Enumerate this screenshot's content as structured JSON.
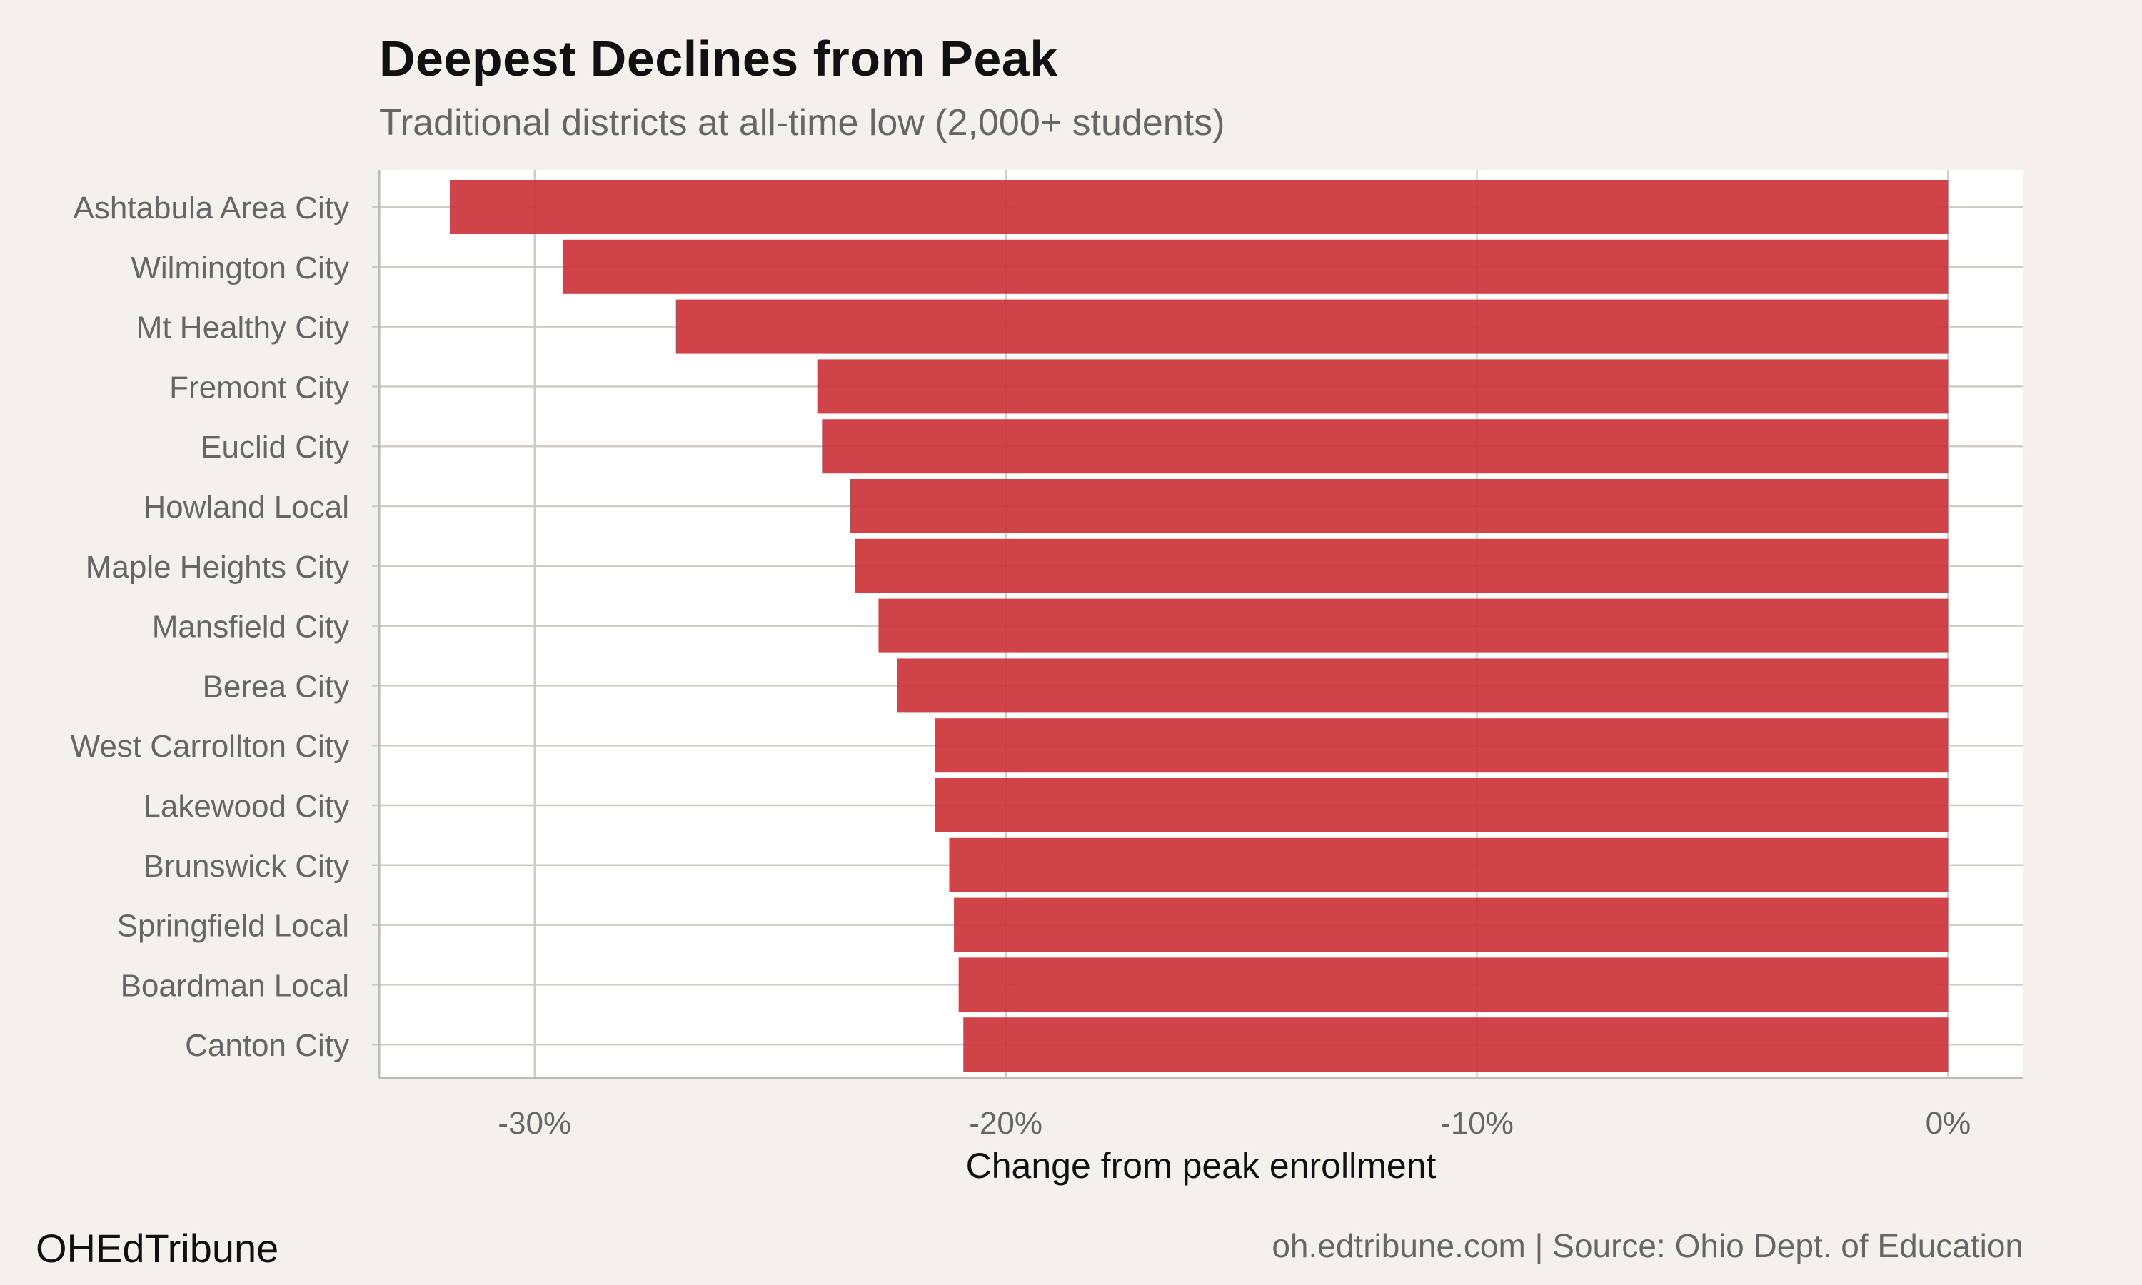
{
  "chart_data": {
    "type": "bar",
    "orientation": "horizontal",
    "title": "Deepest Declines from Peak",
    "subtitle": "Traditional districts at all-time low (2,000+ students)",
    "xlabel": "Change from peak enrollment",
    "ylabel": "",
    "categories": [
      "Ashtabula Area City",
      "Wilmington City",
      "Mt Healthy City",
      "Fremont City",
      "Euclid City",
      "Howland Local",
      "Maple Heights City",
      "Mansfield City",
      "Berea City",
      "West Carrollton City",
      "Lakewood City",
      "Brunswick City",
      "Springfield Local",
      "Boardman Local",
      "Canton City"
    ],
    "values": [
      -31.8,
      -29.4,
      -27.0,
      -24.0,
      -23.9,
      -23.3,
      -23.2,
      -22.7,
      -22.3,
      -21.5,
      -21.5,
      -21.2,
      -21.1,
      -21.0,
      -20.9
    ],
    "xlim": [
      -33.3,
      1.6
    ],
    "xticks": [
      -30,
      -20,
      -10,
      0
    ],
    "xtick_labels": [
      "-30%",
      "-20%",
      "-10%",
      "0%"
    ],
    "grid": true,
    "bar_color": "#cc3338"
  },
  "footer": {
    "brand": "OHEdTribune",
    "source": "oh.edtribune.com | Source: Ohio Dept. of Education"
  }
}
